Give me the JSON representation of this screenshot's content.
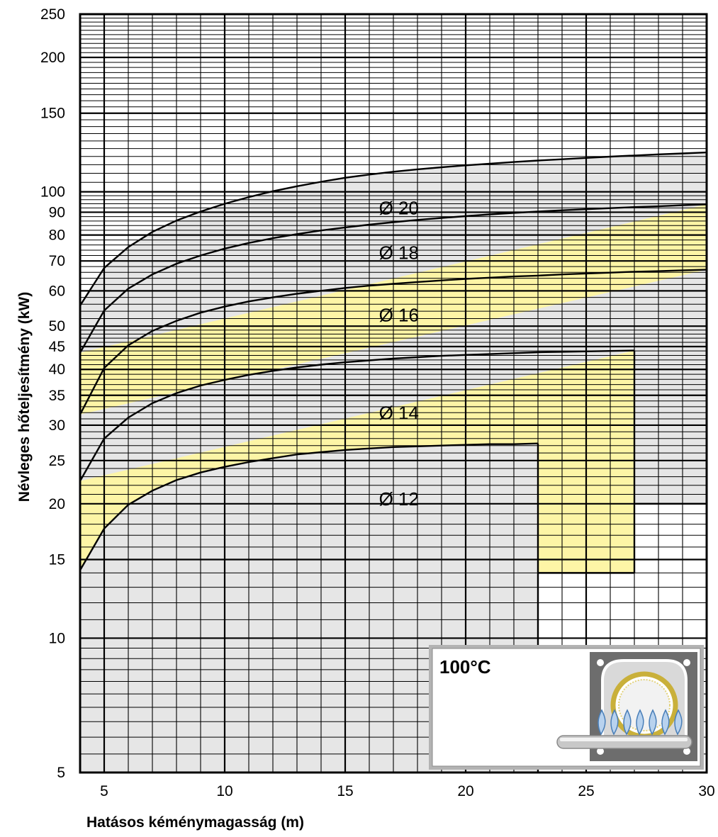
{
  "chart_data": {
    "type": "area",
    "xlabel": "Hatásos kéménymagasság (m)",
    "ylabel": "Névleges hőteljesítmény (kW)",
    "xlim": [
      4,
      30
    ],
    "ylim": [
      5,
      250
    ],
    "yscale": "log",
    "grid": true,
    "x_ticks": [
      {
        "value": 5,
        "label": "5"
      },
      {
        "value": 10,
        "label": "10"
      },
      {
        "value": 15,
        "label": "15"
      },
      {
        "value": 20,
        "label": "20"
      },
      {
        "value": 25,
        "label": "25"
      },
      {
        "value": 30,
        "label": "30"
      }
    ],
    "y_ticks": [
      {
        "value": 5,
        "label": "5"
      },
      {
        "value": 10,
        "label": "10"
      },
      {
        "value": 15,
        "label": "15"
      },
      {
        "value": 20,
        "label": "20"
      },
      {
        "value": 25,
        "label": "25"
      },
      {
        "value": 30,
        "label": "30"
      },
      {
        "value": 35,
        "label": "35"
      },
      {
        "value": 40,
        "label": "40"
      },
      {
        "value": 45,
        "label": "45"
      },
      {
        "value": 50,
        "label": "50"
      },
      {
        "value": 60,
        "label": "60"
      },
      {
        "value": 70,
        "label": "70"
      },
      {
        "value": 80,
        "label": "80"
      },
      {
        "value": 90,
        "label": "90"
      },
      {
        "value": 100,
        "label": "100"
      },
      {
        "value": 150,
        "label": "150"
      },
      {
        "value": 200,
        "label": "200"
      },
      {
        "value": 250,
        "label": "250"
      }
    ],
    "major_y_grid": [
      5,
      10,
      15,
      20,
      25,
      30,
      35,
      40,
      45,
      50,
      60,
      70,
      80,
      90,
      100,
      150,
      200,
      250
    ],
    "series": [
      {
        "name": "Ø 12",
        "fill": "#e6e6e6",
        "x_end": 23,
        "upper": [
          [
            4,
            14.2
          ],
          [
            5,
            17.6
          ],
          [
            6,
            19.9
          ],
          [
            7,
            21.4
          ],
          [
            8,
            22.6
          ],
          [
            9,
            23.5
          ],
          [
            10,
            24.2
          ],
          [
            11,
            24.8
          ],
          [
            12,
            25.3
          ],
          [
            13,
            25.8
          ],
          [
            14,
            26.1
          ],
          [
            15,
            26.4
          ],
          [
            16,
            26.6
          ],
          [
            17,
            26.8
          ],
          [
            18,
            26.9
          ],
          [
            19,
            27.0
          ],
          [
            20,
            27.1
          ],
          [
            21,
            27.2
          ],
          [
            22,
            27.2
          ],
          [
            23,
            27.3
          ]
        ],
        "lower": [
          [
            4,
            5
          ],
          [
            23,
            5
          ]
        ]
      },
      {
        "name": "Ø 14",
        "fill": "#fdf5a6",
        "x_end": 27,
        "upper": [
          [
            4,
            22.5
          ],
          [
            5,
            28.0
          ],
          [
            6,
            31.2
          ],
          [
            7,
            33.6
          ],
          [
            8,
            35.4
          ],
          [
            9,
            36.8
          ],
          [
            10,
            37.9
          ],
          [
            11,
            38.9
          ],
          [
            12,
            39.7
          ],
          [
            13,
            40.4
          ],
          [
            14,
            41.0
          ],
          [
            15,
            41.5
          ],
          [
            16,
            41.9
          ],
          [
            17,
            42.3
          ],
          [
            18,
            42.6
          ],
          [
            19,
            42.9
          ],
          [
            20,
            43.1
          ],
          [
            21,
            43.3
          ],
          [
            22,
            43.5
          ],
          [
            23,
            43.7
          ],
          [
            24,
            43.8
          ],
          [
            25,
            43.9
          ],
          [
            26,
            44.0
          ],
          [
            27,
            44.1
          ]
        ],
        "lower": [
          [
            4,
            14.2
          ],
          [
            5,
            17.6
          ],
          [
            6,
            19.9
          ],
          [
            7,
            21.4
          ],
          [
            8,
            22.6
          ],
          [
            9,
            23.5
          ],
          [
            10,
            24.2
          ],
          [
            11,
            24.8
          ],
          [
            12,
            25.3
          ],
          [
            13,
            25.8
          ],
          [
            14,
            26.1
          ],
          [
            15,
            26.4
          ],
          [
            16,
            26.6
          ],
          [
            17,
            26.8
          ],
          [
            18,
            26.9
          ],
          [
            19,
            27.0
          ],
          [
            20,
            27.1
          ],
          [
            21,
            27.2
          ],
          [
            22,
            27.2
          ],
          [
            23,
            27.3
          ],
          [
            23,
            14
          ],
          [
            27,
            14
          ]
        ]
      },
      {
        "name": "Ø 16",
        "fill": "#e6e6e6",
        "x_end": 30,
        "upper": [
          [
            4,
            31.7
          ],
          [
            5,
            40.3
          ],
          [
            6,
            45.3
          ],
          [
            7,
            48.8
          ],
          [
            8,
            51.4
          ],
          [
            9,
            53.6
          ],
          [
            10,
            55.3
          ],
          [
            11,
            56.8
          ],
          [
            12,
            58.0
          ],
          [
            13,
            59.1
          ],
          [
            14,
            60.0
          ],
          [
            15,
            60.9
          ],
          [
            16,
            61.6
          ],
          [
            17,
            62.2
          ],
          [
            18,
            62.8
          ],
          [
            19,
            63.3
          ],
          [
            20,
            63.8
          ],
          [
            21,
            64.2
          ],
          [
            22,
            64.6
          ],
          [
            23,
            64.9
          ],
          [
            24,
            65.3
          ],
          [
            25,
            65.6
          ],
          [
            26,
            65.9
          ],
          [
            27,
            66.2
          ],
          [
            28,
            66.4
          ],
          [
            29,
            66.7
          ],
          [
            30,
            66.9
          ]
        ],
        "lower": [
          [
            4,
            22.5
          ],
          [
            27,
            44.1
          ],
          [
            27,
            20
          ],
          [
            30,
            20
          ]
        ]
      },
      {
        "name": "Ø 18",
        "fill": "#fdf5a6",
        "x_end": 30,
        "upper": [
          [
            4,
            43.6
          ],
          [
            5,
            54.2
          ],
          [
            6,
            60.7
          ],
          [
            7,
            65.3
          ],
          [
            8,
            69.0
          ],
          [
            9,
            72.0
          ],
          [
            10,
            74.6
          ],
          [
            11,
            76.8
          ],
          [
            12,
            78.7
          ],
          [
            13,
            80.4
          ],
          [
            14,
            81.9
          ],
          [
            15,
            83.2
          ],
          [
            16,
            84.4
          ],
          [
            17,
            85.5
          ],
          [
            18,
            86.5
          ],
          [
            19,
            87.4
          ],
          [
            20,
            88.2
          ],
          [
            21,
            89.0
          ],
          [
            22,
            89.7
          ],
          [
            23,
            90.3
          ],
          [
            24,
            90.9
          ],
          [
            25,
            91.4
          ],
          [
            26,
            91.9
          ],
          [
            27,
            92.4
          ],
          [
            28,
            92.8
          ],
          [
            29,
            93.3
          ],
          [
            30,
            93.7
          ]
        ],
        "lower": [
          [
            4,
            31.7
          ],
          [
            30,
            66.9
          ]
        ]
      },
      {
        "name": "Ø 20",
        "fill": "#e6e6e6",
        "x_end": 30,
        "upper": [
          [
            4,
            55.6
          ],
          [
            5,
            67.5
          ],
          [
            6,
            75.2
          ],
          [
            7,
            81.3
          ],
          [
            8,
            86.2
          ],
          [
            9,
            90.3
          ],
          [
            10,
            94.0
          ],
          [
            11,
            97.3
          ],
          [
            12,
            100.3
          ],
          [
            13,
            102.9
          ],
          [
            14,
            105.3
          ],
          [
            15,
            107.5
          ],
          [
            16,
            109.3
          ],
          [
            17,
            110.9
          ],
          [
            18,
            112.3
          ],
          [
            19,
            113.5
          ],
          [
            20,
            114.6
          ],
          [
            21,
            115.6
          ],
          [
            22,
            116.6
          ],
          [
            23,
            117.5
          ],
          [
            24,
            118.3
          ],
          [
            25,
            119.1
          ],
          [
            26,
            119.9
          ],
          [
            27,
            120.6
          ],
          [
            28,
            121.3
          ],
          [
            29,
            121.9
          ],
          [
            30,
            122.5
          ]
        ],
        "lower": [
          [
            4,
            43.6
          ],
          [
            30,
            93.7
          ]
        ]
      }
    ],
    "band_labels": [
      {
        "text": "Ø 20",
        "x": 16.4,
        "y": 92
      },
      {
        "text": "Ø 18",
        "x": 16.4,
        "y": 73
      },
      {
        "text": "Ø 16",
        "x": 16.4,
        "y": 53
      },
      {
        "text": "Ø 14",
        "x": 16.4,
        "y": 32
      },
      {
        "text": "Ø 12",
        "x": 16.4,
        "y": 20.5
      }
    ],
    "inset": {
      "label": "100°C",
      "icon": "gas-boiler-burner-icon"
    },
    "colors": {
      "grey_band": "#e6e6e6",
      "yellow_band": "#fdf5a6",
      "grid": "#000000",
      "curve": "#000000"
    }
  }
}
